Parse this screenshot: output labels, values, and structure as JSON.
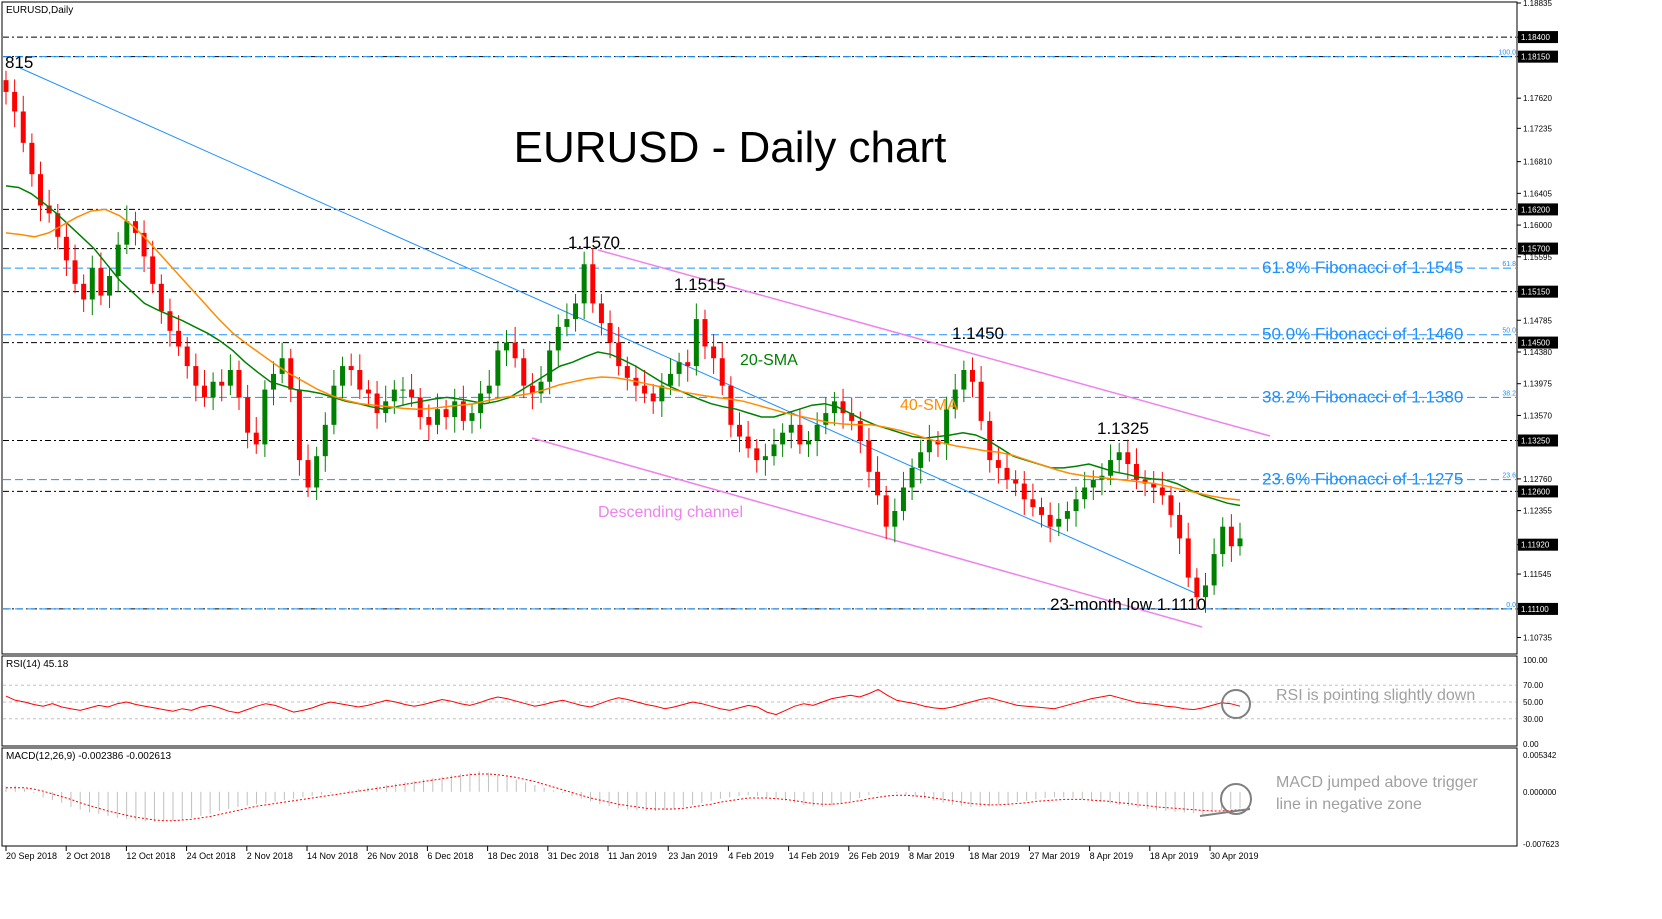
{
  "header": {
    "symbol_label": "EURUSD,Daily"
  },
  "chart_data": [
    {
      "type": "candlestick",
      "title": "EURUSD - Daily chart",
      "ylim": [
        1.1055,
        1.18835
      ],
      "price_ticks": [
        "1.18835",
        "1.18400",
        "1.18150",
        "1.17620",
        "1.17235",
        "1.16810",
        "1.16405",
        "1.16000",
        "1.15595",
        "1.15150",
        "1.14785",
        "1.14380",
        "1.13975",
        "1.13570",
        "1.13250",
        "1.12760",
        "1.12600",
        "1.12355",
        "1.11920",
        "1.11545",
        "1.11100",
        "1.10735"
      ],
      "x_labels": [
        "20 Sep 2018",
        "2 Oct 2018",
        "12 Oct 2018",
        "24 Oct 2018",
        "2 Nov 2018",
        "14 Nov 2018",
        "26 Nov 2018",
        "6 Dec 2018",
        "18 Dec 2018",
        "31 Dec 2018",
        "11 Jan 2019",
        "23 Jan 2019",
        "4 Feb 2019",
        "14 Feb 2019",
        "26 Feb 2019",
        "8 Mar 2019",
        "18 Mar 2019",
        "27 Mar 2019",
        "8 Apr 2019",
        "18 Apr 2019",
        "30 Apr 2019"
      ],
      "horizontal_levels": [
        {
          "price": 1.184,
          "label": "1.18400",
          "style": "dash-dot"
        },
        {
          "price": 1.1815,
          "label": "1.18150",
          "style": "dash-dot"
        },
        {
          "price": 1.162,
          "label": "1.16200",
          "style": "dash-dot"
        },
        {
          "price": 1.157,
          "label": "1.15700",
          "style": "dash-dot"
        },
        {
          "price": 1.1515,
          "label": "1.15150",
          "style": "dash-dot"
        },
        {
          "price": 1.145,
          "label": "1.14500",
          "style": "dash-dot"
        },
        {
          "price": 1.1325,
          "label": "1.13250",
          "style": "dash-dot"
        },
        {
          "price": 1.126,
          "label": "1.12600",
          "style": "dash-dot"
        },
        {
          "price": 1.111,
          "label": "1.11100",
          "style": "dash-dot"
        }
      ],
      "current_price": {
        "price": 1.1192,
        "label": "1.11920"
      },
      "fibonacci": [
        {
          "price": 1.1815,
          "tag": "100.0",
          "label": ""
        },
        {
          "price": 1.1545,
          "tag": "61.8",
          "label": "61.8% Fibonacci of 1.1545"
        },
        {
          "price": 1.146,
          "tag": "50.0",
          "label": "50.0% Fibonacci of 1.1460"
        },
        {
          "price": 1.138,
          "tag": "38.2",
          "label": "38.2% Fibonacci of 1.1380"
        },
        {
          "price": 1.1275,
          "tag": "23.6",
          "label": "23.6% Fibonacci of 1.1275"
        },
        {
          "price": 1.111,
          "tag": "0.0",
          "label": ""
        }
      ],
      "annotations": [
        "815",
        "1.1570",
        "1.1515",
        "1.1450",
        "1.1325",
        "23-month low 1.1110",
        "Descending channel",
        "20-SMA",
        "40-SMA"
      ],
      "ohlc_close": [
        1.177,
        1.1745,
        1.1705,
        1.1665,
        1.1625,
        1.1615,
        1.1585,
        1.1555,
        1.1525,
        1.1505,
        1.1545,
        1.151,
        1.1535,
        1.1575,
        1.1605,
        1.159,
        1.156,
        1.1525,
        1.149,
        1.1465,
        1.1445,
        1.142,
        1.1395,
        1.138,
        1.14,
        1.1395,
        1.1415,
        1.138,
        1.1335,
        1.132,
        1.139,
        1.141,
        1.143,
        1.139,
        1.13,
        1.1265,
        1.1305,
        1.1345,
        1.1395,
        1.142,
        1.1415,
        1.139,
        1.1385,
        1.136,
        1.1375,
        1.139,
        1.139,
        1.138,
        1.1355,
        1.1345,
        1.1365,
        1.1355,
        1.1375,
        1.135,
        1.136,
        1.1385,
        1.1395,
        1.144,
        1.145,
        1.143,
        1.1395,
        1.1385,
        1.14,
        1.144,
        1.147,
        1.148,
        1.15,
        1.155,
        1.15,
        1.1475,
        1.145,
        1.142,
        1.1405,
        1.1395,
        1.1385,
        1.1375,
        1.1395,
        1.141,
        1.1425,
        1.142,
        1.148,
        1.1445,
        1.143,
        1.1395,
        1.1345,
        1.133,
        1.1315,
        1.13,
        1.1305,
        1.132,
        1.1335,
        1.1345,
        1.132,
        1.1325,
        1.1345,
        1.136,
        1.1375,
        1.136,
        1.135,
        1.1325,
        1.1285,
        1.1255,
        1.1215,
        1.1235,
        1.1265,
        1.129,
        1.131,
        1.1325,
        1.132,
        1.1365,
        1.139,
        1.1415,
        1.14,
        1.135,
        1.13,
        1.129,
        1.1275,
        1.127,
        1.125,
        1.124,
        1.123,
        1.1215,
        1.1225,
        1.1235,
        1.125,
        1.1265,
        1.1275,
        1.128,
        1.13,
        1.131,
        1.1295,
        1.1275,
        1.127,
        1.1265,
        1.1255,
        1.123,
        1.12,
        1.115,
        1.1125,
        1.114,
        1.118,
        1.1215,
        1.119,
        1.12
      ],
      "series": [
        {
          "name": "20-SMA",
          "color": "#008000",
          "values": [
            1.165,
            1.1648,
            1.164,
            1.1628,
            1.1615,
            1.16,
            1.1585,
            1.157,
            1.155,
            1.153,
            1.1515,
            1.15,
            1.1492,
            1.1485,
            1.1478,
            1.147,
            1.1462,
            1.1452,
            1.144,
            1.1425,
            1.1412,
            1.14,
            1.1395,
            1.139,
            1.1388,
            1.1385,
            1.138,
            1.1375,
            1.1372,
            1.1368,
            1.1365,
            1.1368,
            1.1372,
            1.1375,
            1.1378,
            1.138,
            1.1378,
            1.1375,
            1.1372,
            1.1375,
            1.138,
            1.139,
            1.14,
            1.141,
            1.142,
            1.1425,
            1.1432,
            1.1438,
            1.1435,
            1.1428,
            1.142,
            1.141,
            1.14,
            1.1392,
            1.1385,
            1.1378,
            1.1372,
            1.1368,
            1.1365,
            1.136,
            1.1355,
            1.1355,
            1.136,
            1.1365,
            1.137,
            1.1372,
            1.1368,
            1.136,
            1.1352,
            1.1345,
            1.134,
            1.1335,
            1.133,
            1.1328,
            1.133,
            1.1332,
            1.1335,
            1.1332,
            1.1325,
            1.1315,
            1.1305,
            1.13,
            1.1295,
            1.129,
            1.129,
            1.1292,
            1.1295,
            1.129,
            1.1285,
            1.1282,
            1.1278,
            1.1276,
            1.1275,
            1.127,
            1.1262,
            1.1255,
            1.125,
            1.1245,
            1.1242
          ]
        },
        {
          "name": "40-SMA",
          "color": "#FF8C00",
          "values": [
            1.159,
            1.1588,
            1.1585,
            1.159,
            1.16,
            1.161,
            1.1618,
            1.162,
            1.1612,
            1.1598,
            1.158,
            1.156,
            1.154,
            1.152,
            1.15,
            1.148,
            1.1462,
            1.1448,
            1.1435,
            1.1422,
            1.141,
            1.14,
            1.139,
            1.1382,
            1.1376,
            1.1372,
            1.137,
            1.1368,
            1.1366,
            1.1365,
            1.1366,
            1.1368,
            1.137,
            1.1372,
            1.1376,
            1.138,
            1.1382,
            1.1385,
            1.139,
            1.1396,
            1.14,
            1.1404,
            1.1406,
            1.1405,
            1.1402,
            1.1398,
            1.1394,
            1.139,
            1.1386,
            1.1383,
            1.138,
            1.1378,
            1.1375,
            1.137,
            1.1365,
            1.136,
            1.1356,
            1.1352,
            1.1348,
            1.1346,
            1.1345,
            1.1345,
            1.1342,
            1.1338,
            1.1333,
            1.1327,
            1.1322,
            1.1318,
            1.1315,
            1.1312,
            1.131,
            1.1306,
            1.13,
            1.1294,
            1.1288,
            1.1283,
            1.128,
            1.1278,
            1.1276,
            1.1274,
            1.1272,
            1.127,
            1.1266,
            1.1262,
            1.1258,
            1.1254,
            1.1251,
            1.1249
          ]
        }
      ]
    },
    {
      "type": "line",
      "title": "RSI(14) 45.18",
      "ylim": [
        0,
        100
      ],
      "ticks": [
        "100.00",
        "70.00",
        "50.00",
        "30.00",
        "0.00"
      ],
      "levels": [
        70,
        50,
        30
      ],
      "series": [
        {
          "name": "RSI(14)",
          "color": "#FF0000",
          "values": [
            57,
            52,
            50,
            47,
            45,
            48,
            44,
            42,
            40,
            43,
            46,
            44,
            48,
            50,
            47,
            45,
            43,
            41,
            39,
            42,
            40,
            44,
            46,
            43,
            39,
            37,
            41,
            45,
            48,
            46,
            42,
            38,
            40,
            43,
            47,
            50,
            48,
            46,
            44,
            46,
            49,
            52,
            50,
            47,
            45,
            47,
            50,
            53,
            51,
            48,
            46,
            49,
            53,
            56,
            54,
            51,
            48,
            45,
            47,
            50,
            52,
            49,
            46,
            44,
            48,
            52,
            55,
            53,
            50,
            47,
            45,
            42,
            44,
            47,
            50,
            48,
            45,
            42,
            40,
            43,
            46,
            44,
            38,
            35,
            40,
            45,
            48,
            46,
            50,
            54,
            56,
            58,
            56,
            60,
            65,
            58,
            52,
            50,
            48,
            45,
            43,
            42,
            44,
            47,
            50,
            53,
            55,
            52,
            49,
            46,
            45,
            44,
            43,
            42,
            45,
            48,
            51,
            54,
            56,
            58,
            55,
            52,
            49,
            48,
            47,
            45,
            44,
            42,
            41,
            43,
            46,
            49,
            48,
            45
          ]
        }
      ],
      "annotation": "RSI is pointing slightly down"
    },
    {
      "type": "bar+line",
      "title": "MACD(12,26,9) -0.002386 -0.002613",
      "ylim": [
        -0.0076,
        0.0058
      ],
      "ticks": [
        "0.005342",
        "0.000000",
        "-0.007623"
      ],
      "series": [
        {
          "name": "MACD(12,26,9)",
          "color": "#C0C0C0",
          "values": [
            0.0008,
            0.0009,
            0.0005,
            -0.0002,
            -0.0008,
            -0.0012,
            -0.0016,
            -0.0022,
            -0.0026,
            -0.003,
            -0.0032,
            -0.0035,
            -0.0038,
            -0.004,
            -0.0042,
            -0.0043,
            -0.0044,
            -0.0043,
            -0.0042,
            -0.004,
            -0.0038,
            -0.0035,
            -0.0032,
            -0.0028,
            -0.0025,
            -0.0022,
            -0.002,
            -0.0018,
            -0.0016,
            -0.0014,
            -0.0012,
            -0.001,
            -0.0008,
            -0.0006,
            -0.0004,
            -0.0002,
            0.0,
            0.0002,
            0.0004,
            0.0006,
            0.0008,
            0.001,
            0.0012,
            0.0014,
            0.0016,
            0.0018,
            0.002,
            0.0022,
            0.0024,
            0.0026,
            0.0028,
            0.003,
            0.0028,
            0.0025,
            0.0022,
            0.0018,
            0.0014,
            0.001,
            0.0006,
            0.0002,
            -0.0002,
            -0.0006,
            -0.001,
            -0.0014,
            -0.0018,
            -0.0021,
            -0.0024,
            -0.0026,
            -0.0027,
            -0.0028,
            -0.0028,
            -0.0027,
            -0.0025,
            -0.0022,
            -0.0019,
            -0.0016,
            -0.0013,
            -0.001,
            -0.0008,
            -0.0006,
            -0.0005,
            -0.0006,
            -0.0008,
            -0.001,
            -0.0013,
            -0.0016,
            -0.0019,
            -0.0021,
            -0.0022,
            -0.002,
            -0.0017,
            -0.0013,
            -0.0009,
            -0.0005,
            -0.0002,
            0.0,
            -0.0002,
            -0.0004,
            -0.0007,
            -0.001,
            -0.0013,
            -0.0016,
            -0.0019,
            -0.0021,
            -0.0022,
            -0.0022,
            -0.0021,
            -0.0019,
            -0.0017,
            -0.0015,
            -0.0013,
            -0.0011,
            -0.0009,
            -0.0008,
            -0.0008,
            -0.0009,
            -0.0011,
            -0.0013,
            -0.0015,
            -0.0017,
            -0.0019,
            -0.0021,
            -0.0023,
            -0.0025,
            -0.0027,
            -0.0028,
            -0.0029,
            -0.003,
            -0.0031,
            -0.0033,
            -0.003,
            -0.0027,
            -0.0025,
            -0.0024
          ]
        },
        {
          "name": "Signal",
          "color": "#FF0000",
          "values": [
            0.0006,
            0.0006,
            0.0006,
            0.0004,
            0.0001,
            -0.0003,
            -0.0007,
            -0.0011,
            -0.0016,
            -0.002,
            -0.0024,
            -0.0028,
            -0.0031,
            -0.0034,
            -0.0037,
            -0.0039,
            -0.0041,
            -0.0042,
            -0.0042,
            -0.0041,
            -0.004,
            -0.0038,
            -0.0036,
            -0.0033,
            -0.003,
            -0.0027,
            -0.0024,
            -0.0021,
            -0.0019,
            -0.0017,
            -0.0015,
            -0.0013,
            -0.0011,
            -0.0009,
            -0.0007,
            -0.0005,
            -0.0003,
            -0.0001,
            0.0001,
            0.0003,
            0.0005,
            0.0007,
            0.0009,
            0.0011,
            0.0013,
            0.0015,
            0.0017,
            0.0019,
            0.0021,
            0.0023,
            0.0025,
            0.0026,
            0.0026,
            0.0025,
            0.0023,
            0.0021,
            0.0018,
            0.0015,
            0.0011,
            0.0007,
            0.0003,
            -0.0001,
            -0.0005,
            -0.0009,
            -0.0012,
            -0.0015,
            -0.0018,
            -0.002,
            -0.0022,
            -0.0024,
            -0.0025,
            -0.0025,
            -0.0025,
            -0.0024,
            -0.0022,
            -0.002,
            -0.0018,
            -0.0015,
            -0.0013,
            -0.0011,
            -0.0009,
            -0.0009,
            -0.0009,
            -0.001,
            -0.0011,
            -0.0013,
            -0.0015,
            -0.0017,
            -0.0018,
            -0.0018,
            -0.0017,
            -0.0015,
            -0.0013,
            -0.001,
            -0.0008,
            -0.0006,
            -0.0005,
            -0.0005,
            -0.0006,
            -0.0007,
            -0.0009,
            -0.0011,
            -0.0013,
            -0.0015,
            -0.0017,
            -0.0018,
            -0.0019,
            -0.0019,
            -0.0018,
            -0.0017,
            -0.0016,
            -0.0014,
            -0.0013,
            -0.0012,
            -0.0011,
            -0.0011,
            -0.0011,
            -0.0012,
            -0.0013,
            -0.0014,
            -0.0016,
            -0.0017,
            -0.0019,
            -0.002,
            -0.0022,
            -0.0023,
            -0.0024,
            -0.0025,
            -0.0026,
            -0.0027,
            -0.0028,
            -0.0028,
            -0.0027,
            -0.0026
          ]
        }
      ],
      "annotation": [
        "MACD jumped above trigger",
        "line in negative zone"
      ]
    }
  ]
}
